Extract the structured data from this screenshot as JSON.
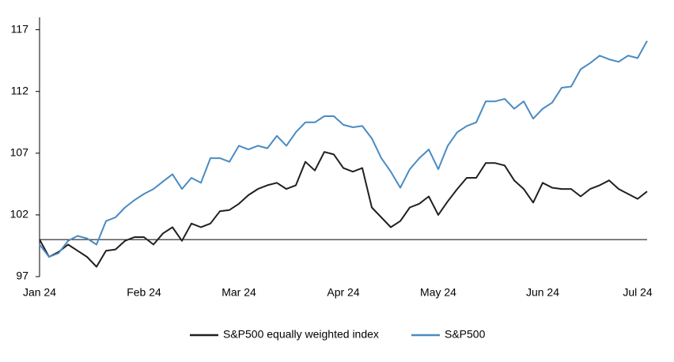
{
  "chart_data": {
    "type": "line",
    "categories": [
      "Jan 24",
      null,
      null,
      null,
      null,
      null,
      null,
      null,
      null,
      null,
      null,
      "Feb 24",
      null,
      null,
      null,
      null,
      null,
      null,
      null,
      null,
      null,
      "Mar 24",
      null,
      null,
      null,
      null,
      null,
      null,
      null,
      null,
      null,
      null,
      "Apr 24",
      null,
      null,
      null,
      null,
      null,
      null,
      null,
      null,
      null,
      "May 24",
      null,
      null,
      null,
      null,
      null,
      null,
      null,
      null,
      null,
      null,
      "Jun 24",
      null,
      null,
      null,
      null,
      null,
      null,
      null,
      null,
      null,
      "Jul 24",
      null
    ],
    "series": [
      {
        "name": "S&P500 equally weighted index",
        "color": "#231f20",
        "values": [
          100,
          98.6,
          99.0,
          99.6,
          99.1,
          98.6,
          97.8,
          99.1,
          99.2,
          99.9,
          100.2,
          100.2,
          99.6,
          100.5,
          101.0,
          99.9,
          101.3,
          101.0,
          101.3,
          102.3,
          102.4,
          102.9,
          103.6,
          104.1,
          104.4,
          104.6,
          104.1,
          104.4,
          106.3,
          105.6,
          107.1,
          106.9,
          105.8,
          105.5,
          105.8,
          102.6,
          101.8,
          101.0,
          101.5,
          102.6,
          102.9,
          103.5,
          102.0,
          103.1,
          104.1,
          105.0,
          105.0,
          106.2,
          106.2,
          106.0,
          104.8,
          104.1,
          103.0,
          104.6,
          104.2,
          104.1,
          104.1,
          103.5,
          104.1,
          104.4,
          104.8,
          104.1,
          103.7,
          103.3,
          103.9
        ]
      },
      {
        "name": "S&P500",
        "color": "#4a8bc2",
        "values": [
          99.6,
          98.6,
          98.9,
          99.9,
          100.3,
          100.1,
          99.6,
          101.5,
          101.8,
          102.6,
          103.2,
          103.7,
          104.1,
          104.7,
          105.3,
          104.1,
          105.0,
          104.6,
          106.6,
          106.6,
          106.3,
          107.6,
          107.3,
          107.6,
          107.4,
          108.4,
          107.6,
          108.7,
          109.5,
          109.5,
          110.0,
          110.0,
          109.3,
          109.1,
          109.2,
          108.2,
          106.6,
          105.5,
          104.2,
          105.7,
          106.6,
          107.3,
          105.7,
          107.6,
          108.7,
          109.2,
          109.5,
          111.2,
          111.2,
          111.4,
          110.6,
          111.2,
          109.8,
          110.6,
          111.1,
          112.3,
          112.4,
          113.8,
          114.3,
          114.9,
          114.6,
          114.4,
          114.9,
          114.7,
          116.1
        ]
      }
    ],
    "ylim": [
      97,
      118
    ],
    "yticks": [
      97,
      102,
      107,
      112,
      117
    ],
    "baseline": 100
  }
}
